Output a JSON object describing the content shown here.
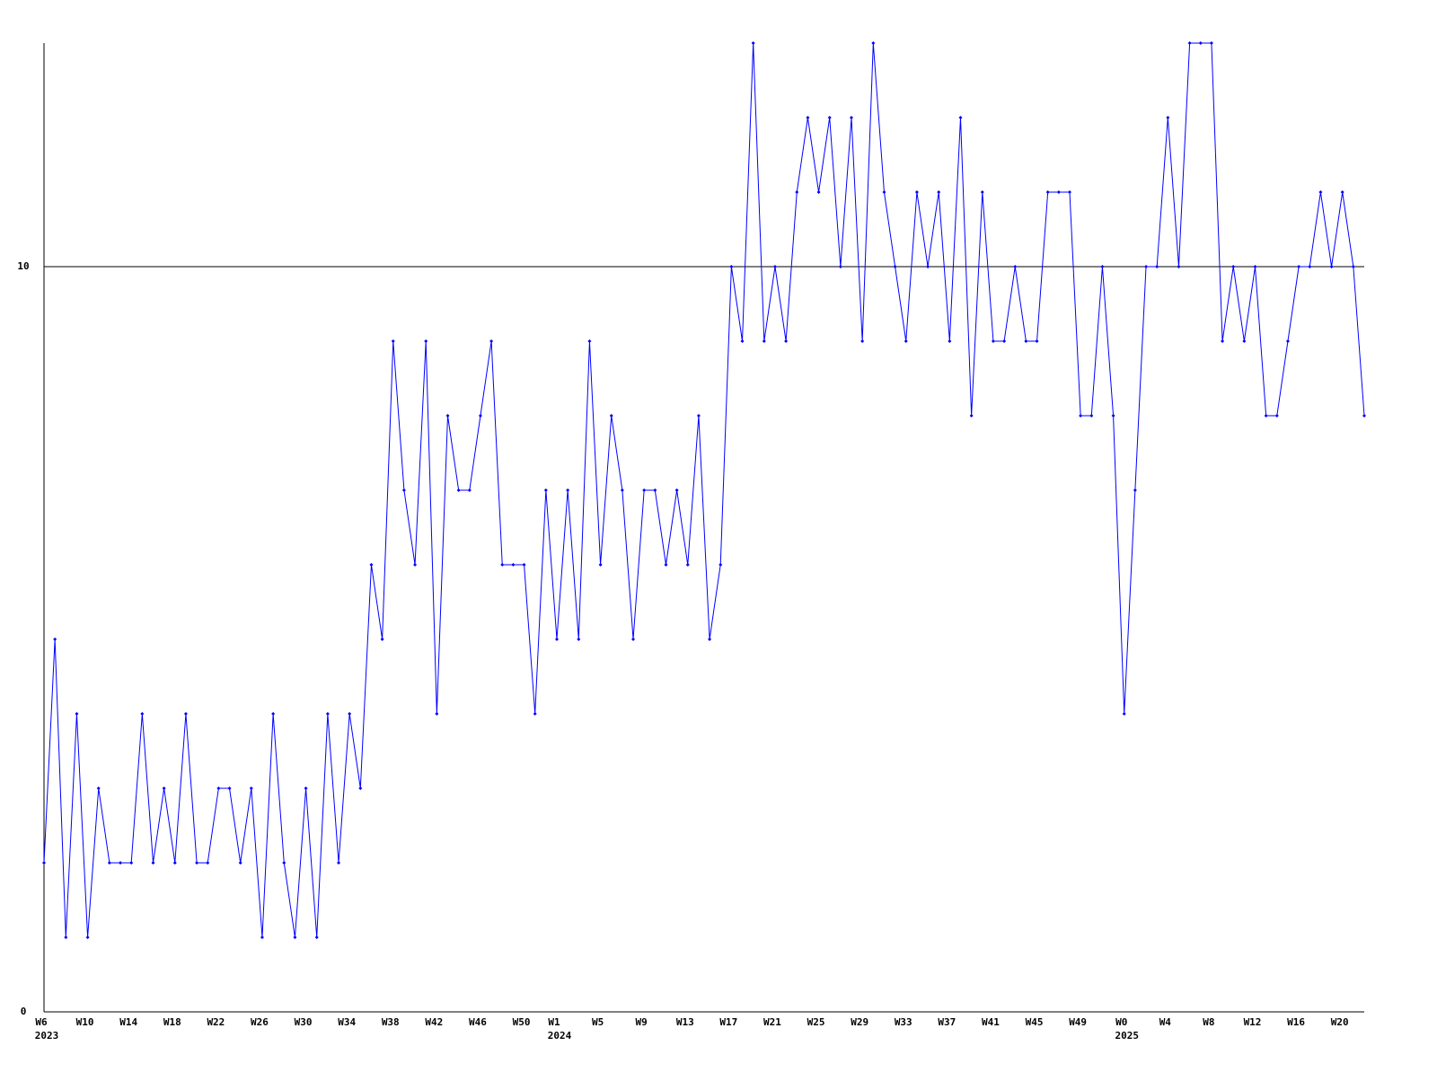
{
  "chart_data": {
    "type": "line",
    "categories": [
      "W6",
      null,
      null,
      null,
      "W10",
      null,
      null,
      null,
      "W14",
      null,
      null,
      null,
      "W18",
      null,
      null,
      null,
      "W22",
      null,
      null,
      null,
      "W26",
      null,
      null,
      null,
      "W30",
      null,
      null,
      null,
      "W34",
      null,
      null,
      null,
      "W38",
      null,
      null,
      null,
      "W42",
      null,
      null,
      null,
      "W46",
      null,
      null,
      null,
      "W50",
      null,
      null,
      "W1",
      null,
      null,
      null,
      "W5",
      null,
      null,
      null,
      "W9",
      null,
      null,
      null,
      "W13",
      null,
      null,
      null,
      "W17",
      null,
      null,
      null,
      "W21",
      null,
      null,
      null,
      "W25",
      null,
      null,
      null,
      "W29",
      null,
      null,
      null,
      "W33",
      null,
      null,
      null,
      "W37",
      null,
      null,
      null,
      "W41",
      null,
      null,
      null,
      "W45",
      null,
      null,
      null,
      "W49",
      null,
      null,
      null,
      "W0",
      null,
      null,
      null,
      "W4",
      null,
      null,
      null,
      "W8",
      null,
      null,
      null,
      "W12",
      null,
      null,
      null,
      "W16",
      null,
      null,
      null,
      "W20",
      null,
      null
    ],
    "year_labels": [
      "2023",
      null,
      null,
      null,
      null,
      null,
      null,
      null,
      null,
      null,
      null,
      null,
      null,
      null,
      null,
      null,
      null,
      null,
      null,
      null,
      null,
      null,
      null,
      null,
      null,
      null,
      null,
      null,
      null,
      null,
      null,
      null,
      null,
      null,
      null,
      null,
      null,
      null,
      null,
      null,
      null,
      null,
      null,
      null,
      null,
      null,
      null,
      "2024",
      null,
      null,
      null,
      null,
      null,
      null,
      null,
      null,
      null,
      null,
      null,
      null,
      null,
      null,
      null,
      null,
      null,
      null,
      null,
      null,
      null,
      null,
      null,
      null,
      null,
      null,
      null,
      null,
      null,
      null,
      null,
      null,
      null,
      null,
      null,
      null,
      null,
      null,
      null,
      null,
      null,
      null,
      null,
      null,
      null,
      null,
      null,
      null,
      null,
      null,
      null,
      "2025",
      null,
      null,
      null,
      null,
      null,
      null,
      null,
      null,
      null,
      null,
      null,
      null,
      null,
      null,
      null,
      null,
      null,
      null,
      null,
      null,
      null,
      null
    ],
    "values": [
      2,
      5,
      1,
      4,
      1,
      3,
      2,
      2,
      2,
      4,
      2,
      3,
      2,
      4,
      2,
      2,
      3,
      3,
      2,
      3,
      1,
      4,
      2,
      1,
      3,
      1,
      4,
      2,
      4,
      3,
      6,
      5,
      9,
      7,
      6,
      9,
      4,
      8,
      7,
      7,
      8,
      9,
      6,
      6,
      6,
      4,
      7,
      5,
      7,
      5,
      9,
      6,
      8,
      7,
      5,
      7,
      7,
      6,
      7,
      6,
      8,
      5,
      6,
      10,
      9,
      13,
      9,
      10,
      9,
      11,
      12,
      11,
      12,
      10,
      12,
      9,
      13,
      11,
      10,
      9,
      11,
      10,
      11,
      9,
      12,
      8,
      11,
      9,
      9,
      10,
      9,
      9,
      11,
      11,
      11,
      8,
      8,
      10,
      8,
      4,
      7,
      10,
      10,
      12,
      10,
      13,
      13,
      13,
      9,
      10,
      9,
      10,
      8,
      8,
      9,
      10,
      10,
      11,
      10,
      11,
      10,
      8
    ],
    "color": "#0000ff",
    "ylim": [
      0,
      13
    ],
    "yticks": [
      0,
      10
    ],
    "grid": true
  }
}
